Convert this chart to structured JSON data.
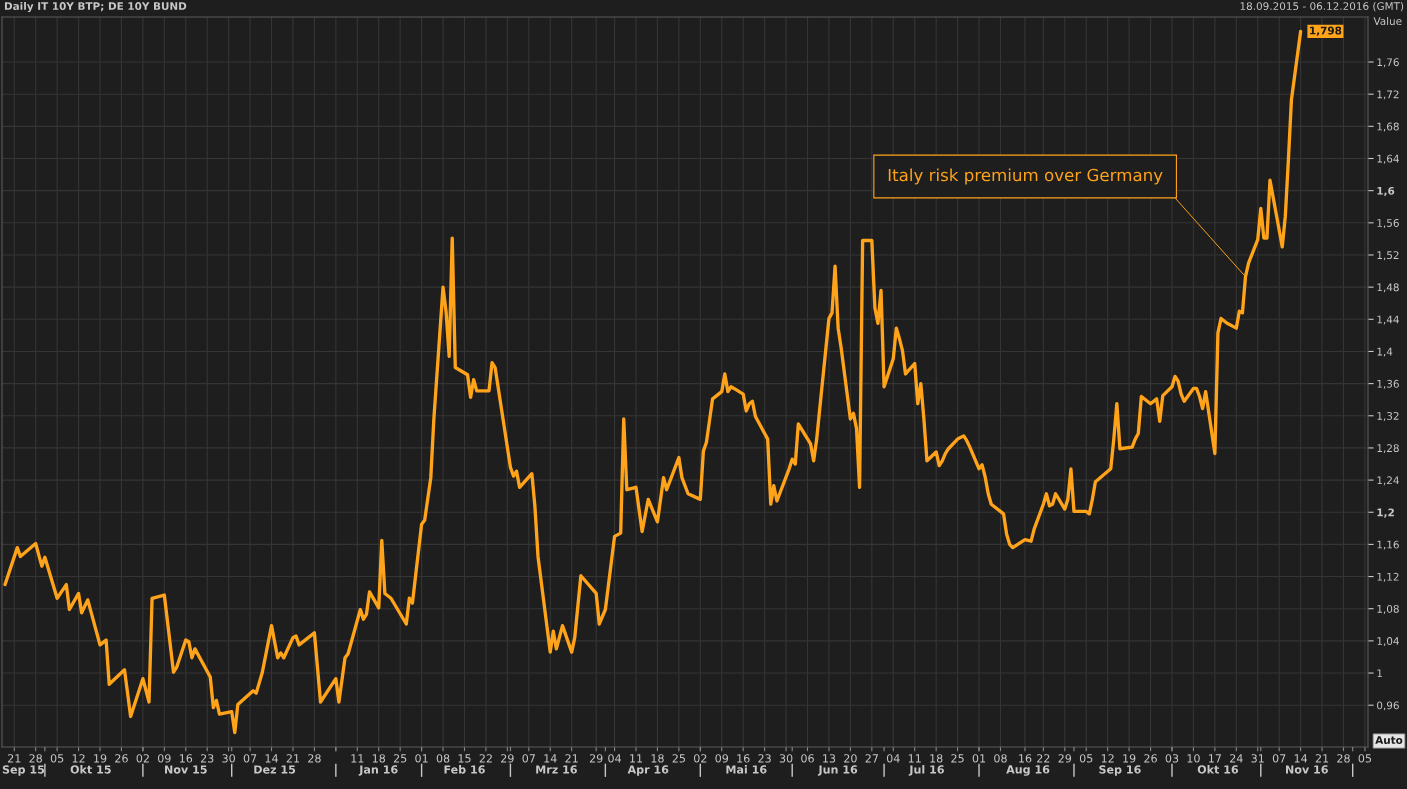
{
  "chart_data": {
    "type": "line",
    "title": "Daily IT 10Y BTP; DE 10Y BUND",
    "subtitle": "18.09.2015 - 06.12.2016 (GMT)",
    "ylabel": "Value",
    "annotations": [
      {
        "text": "Italy risk premium over Germany",
        "x": "2016-10-27",
        "y": 1.493
      },
      {
        "text": "1,798",
        "x": "2016-11-14",
        "y": 1.798
      },
      "Auto"
    ],
    "x": [
      "2015-09-18",
      "2015-09-22",
      "2015-09-23",
      "2015-09-28",
      "2015-09-30",
      "2015-10-01",
      "2015-10-05",
      "2015-10-08",
      "2015-10-09",
      "2015-10-12",
      "2015-10-13",
      "2015-10-15",
      "2015-10-19",
      "2015-10-21",
      "2015-10-22",
      "2015-10-27",
      "2015-10-29",
      "2015-11-02",
      "2015-11-04",
      "2015-11-05",
      "2015-11-09",
      "2015-11-12",
      "2015-11-13",
      "2015-11-16",
      "2015-11-17",
      "2015-11-18",
      "2015-11-19",
      "2015-11-24",
      "2015-11-25",
      "2015-11-26",
      "2015-11-27",
      "2015-12-01",
      "2015-12-02",
      "2015-12-03",
      "2015-12-08",
      "2015-12-09",
      "2015-12-11",
      "2015-12-14",
      "2015-12-16",
      "2015-12-17",
      "2015-12-18",
      "2015-12-21",
      "2015-12-22",
      "2015-12-23",
      "2015-12-28",
      "2015-12-30",
      "2016-01-04",
      "2016-01-05",
      "2016-01-07",
      "2016-01-08",
      "2016-01-12",
      "2016-01-13",
      "2016-01-14",
      "2016-01-15",
      "2016-01-18",
      "2016-01-19",
      "2016-01-20",
      "2016-01-22",
      "2016-01-27",
      "2016-01-28",
      "2016-01-29",
      "2016-02-01",
      "2016-02-02",
      "2016-02-04",
      "2016-02-05",
      "2016-02-08",
      "2016-02-09",
      "2016-02-10",
      "2016-02-11",
      "2016-02-12",
      "2016-02-16",
      "2016-02-17",
      "2016-02-18",
      "2016-02-19",
      "2016-02-23",
      "2016-02-24",
      "2016-02-25",
      "2016-03-01",
      "2016-03-02",
      "2016-03-03",
      "2016-03-04",
      "2016-03-08",
      "2016-03-09",
      "2016-03-10",
      "2016-03-14",
      "2016-03-15",
      "2016-03-16",
      "2016-03-18",
      "2016-03-21",
      "2016-03-22",
      "2016-03-24",
      "2016-03-29",
      "2016-03-30",
      "2016-04-01",
      "2016-04-04",
      "2016-04-06",
      "2016-04-07",
      "2016-04-08",
      "2016-04-11",
      "2016-04-13",
      "2016-04-15",
      "2016-04-18",
      "2016-04-20",
      "2016-04-21",
      "2016-04-25",
      "2016-04-26",
      "2016-04-28",
      "2016-05-02",
      "2016-05-03",
      "2016-05-04",
      "2016-05-06",
      "2016-05-09",
      "2016-05-10",
      "2016-05-11",
      "2016-05-12",
      "2016-05-13",
      "2016-05-16",
      "2016-05-17",
      "2016-05-18",
      "2016-05-19",
      "2016-05-20",
      "2016-05-24",
      "2016-05-25",
      "2016-05-26",
      "2016-05-27",
      "2016-05-31",
      "2016-06-01",
      "2016-06-02",
      "2016-06-03",
      "2016-06-07",
      "2016-06-08",
      "2016-06-09",
      "2016-06-10",
      "2016-06-13",
      "2016-06-14",
      "2016-06-15",
      "2016-06-16",
      "2016-06-17",
      "2016-06-20",
      "2016-06-21",
      "2016-06-22",
      "2016-06-23",
      "2016-06-24",
      "2016-06-27",
      "2016-06-28",
      "2016-06-29",
      "2016-06-30",
      "2016-07-01",
      "2016-07-04",
      "2016-07-05",
      "2016-07-06",
      "2016-07-07",
      "2016-07-08",
      "2016-07-11",
      "2016-07-12",
      "2016-07-13",
      "2016-07-14",
      "2016-07-15",
      "2016-07-18",
      "2016-07-19",
      "2016-07-20",
      "2016-07-21",
      "2016-07-22",
      "2016-07-25",
      "2016-07-27",
      "2016-07-28",
      "2016-07-29",
      "2016-08-01",
      "2016-08-02",
      "2016-08-03",
      "2016-08-04",
      "2016-08-05",
      "2016-08-09",
      "2016-08-10",
      "2016-08-11",
      "2016-08-12",
      "2016-08-16",
      "2016-08-18",
      "2016-08-19",
      "2016-08-22",
      "2016-08-23",
      "2016-08-24",
      "2016-08-25",
      "2016-08-26",
      "2016-08-29",
      "2016-08-30",
      "2016-08-31",
      "2016-09-01",
      "2016-09-05",
      "2016-09-06",
      "2016-09-07",
      "2016-09-08",
      "2016-09-09",
      "2016-09-13",
      "2016-09-14",
      "2016-09-15",
      "2016-09-16",
      "2016-09-20",
      "2016-09-21",
      "2016-09-22",
      "2016-09-23",
      "2016-09-26",
      "2016-09-28",
      "2016-09-29",
      "2016-09-30",
      "2016-10-03",
      "2016-10-04",
      "2016-10-05",
      "2016-10-06",
      "2016-10-07",
      "2016-10-10",
      "2016-10-11",
      "2016-10-12",
      "2016-10-13",
      "2016-10-14",
      "2016-10-17",
      "2016-10-18",
      "2016-10-19",
      "2016-10-21",
      "2016-10-24",
      "2016-10-25",
      "2016-10-26",
      "2016-10-27",
      "2016-10-28",
      "2016-10-31",
      "2016-11-01",
      "2016-11-02",
      "2016-11-03",
      "2016-11-04",
      "2016-11-07",
      "2016-11-08",
      "2016-11-09",
      "2016-11-10",
      "2016-11-11",
      "2016-11-14"
    ],
    "series": [
      {
        "color": "#ffa31a",
        "values": [
          1.11,
          1.156,
          1.145,
          1.161,
          1.133,
          1.144,
          1.093,
          1.11,
          1.079,
          1.099,
          1.075,
          1.091,
          1.035,
          1.041,
          0.986,
          1.004,
          0.946,
          0.993,
          0.964,
          1.093,
          1.097,
          1.001,
          1.007,
          1.041,
          1.039,
          1.019,
          1.03,
          0.995,
          0.957,
          0.966,
          0.949,
          0.952,
          0.926,
          0.961,
          0.978,
          0.975,
          1.001,
          1.059,
          1.019,
          1.025,
          1.019,
          1.044,
          1.046,
          1.035,
          1.05,
          0.964,
          0.993,
          0.964,
          1.019,
          1.024,
          1.079,
          1.067,
          1.073,
          1.101,
          1.081,
          1.165,
          1.099,
          1.093,
          1.061,
          1.093,
          1.087,
          1.185,
          1.19,
          1.243,
          1.316,
          1.48,
          1.449,
          1.394,
          1.541,
          1.38,
          1.371,
          1.343,
          1.365,
          1.351,
          1.351,
          1.386,
          1.38,
          1.256,
          1.245,
          1.251,
          1.231,
          1.248,
          1.207,
          1.145,
          1.026,
          1.052,
          1.03,
          1.059,
          1.026,
          1.044,
          1.121,
          1.099,
          1.061,
          1.079,
          1.17,
          1.174,
          1.316,
          1.228,
          1.231,
          1.176,
          1.216,
          1.188,
          1.243,
          1.228,
          1.268,
          1.243,
          1.223,
          1.216,
          1.276,
          1.287,
          1.341,
          1.35,
          1.372,
          1.35,
          1.356,
          1.354,
          1.347,
          1.326,
          1.335,
          1.338,
          1.319,
          1.291,
          1.21,
          1.233,
          1.214,
          1.254,
          1.266,
          1.26,
          1.31,
          1.285,
          1.264,
          1.291,
          1.329,
          1.441,
          1.448,
          1.506,
          1.429,
          1.404,
          1.316,
          1.323,
          1.304,
          1.231,
          1.538,
          1.538,
          1.454,
          1.435,
          1.476,
          1.356,
          1.391,
          1.429,
          1.416,
          1.401,
          1.372,
          1.385,
          1.335,
          1.36,
          1.316,
          1.264,
          1.275,
          1.258,
          1.264,
          1.273,
          1.279,
          1.291,
          1.295,
          1.289,
          1.281,
          1.254,
          1.259,
          1.244,
          1.223,
          1.21,
          1.198,
          1.173,
          1.16,
          1.156,
          1.166,
          1.164,
          1.179,
          1.21,
          1.223,
          1.208,
          1.21,
          1.223,
          1.204,
          1.216,
          1.254,
          1.201,
          1.201,
          1.198,
          1.216,
          1.238,
          1.241,
          1.254,
          1.291,
          1.335,
          1.279,
          1.281,
          1.291,
          1.298,
          1.344,
          1.335,
          1.341,
          1.313,
          1.345,
          1.356,
          1.369,
          1.363,
          1.347,
          1.338,
          1.354,
          1.354,
          1.344,
          1.329,
          1.35,
          1.273,
          1.423,
          1.441,
          1.435,
          1.429,
          1.45,
          1.448,
          1.493,
          1.51,
          1.539,
          1.578,
          1.541,
          1.541,
          1.613,
          1.551,
          1.53,
          1.568,
          1.638,
          1.713,
          1.798
        ]
      }
    ],
    "xlim": [
      "2015-09-17",
      "2016-12-06"
    ],
    "xticks": [
      {
        "value": "2015-09-21",
        "label": "21"
      },
      {
        "value": "2015-09-28",
        "label": "28"
      },
      {
        "value": "2015-10-05",
        "label": "05"
      },
      {
        "value": "2015-10-12",
        "label": "12"
      },
      {
        "value": "2015-10-19",
        "label": "19"
      },
      {
        "value": "2015-10-26",
        "label": "26"
      },
      {
        "value": "2015-11-02",
        "label": "02"
      },
      {
        "value": "2015-11-09",
        "label": "09"
      },
      {
        "value": "2015-11-16",
        "label": "16"
      },
      {
        "value": "2015-11-23",
        "label": "23"
      },
      {
        "value": "2015-11-30",
        "label": "30"
      },
      {
        "value": "2015-12-07",
        "label": "07"
      },
      {
        "value": "2015-12-14",
        "label": "14"
      },
      {
        "value": "2015-12-21",
        "label": "21"
      },
      {
        "value": "2015-12-28",
        "label": "28"
      },
      {
        "value": "2016-01-04",
        "label": null
      },
      {
        "value": "2016-01-11",
        "label": "11"
      },
      {
        "value": "2016-01-18",
        "label": "18"
      },
      {
        "value": "2016-01-25",
        "label": "25"
      },
      {
        "value": "2016-02-01",
        "label": "01"
      },
      {
        "value": "2016-02-08",
        "label": "08"
      },
      {
        "value": "2016-02-15",
        "label": "15"
      },
      {
        "value": "2016-02-22",
        "label": "22"
      },
      {
        "value": "2016-02-29",
        "label": "29"
      },
      {
        "value": "2016-03-07",
        "label": "07"
      },
      {
        "value": "2016-03-14",
        "label": "14"
      },
      {
        "value": "2016-03-21",
        "label": "21"
      },
      {
        "value": "2016-03-29",
        "label": "29"
      },
      {
        "value": "2016-04-04",
        "label": "04"
      },
      {
        "value": "2016-04-11",
        "label": "11"
      },
      {
        "value": "2016-04-18",
        "label": "18"
      },
      {
        "value": "2016-04-25",
        "label": "25"
      },
      {
        "value": "2016-05-02",
        "label": "02"
      },
      {
        "value": "2016-05-09",
        "label": "09"
      },
      {
        "value": "2016-05-16",
        "label": "16"
      },
      {
        "value": "2016-05-23",
        "label": "23"
      },
      {
        "value": "2016-05-30",
        "label": "30"
      },
      {
        "value": "2016-06-06",
        "label": "06"
      },
      {
        "value": "2016-06-13",
        "label": "13"
      },
      {
        "value": "2016-06-20",
        "label": "20"
      },
      {
        "value": "2016-06-27",
        "label": "27"
      },
      {
        "value": "2016-07-04",
        "label": "04"
      },
      {
        "value": "2016-07-11",
        "label": "11"
      },
      {
        "value": "2016-07-18",
        "label": "18"
      },
      {
        "value": "2016-07-25",
        "label": "25"
      },
      {
        "value": "2016-08-01",
        "label": "01"
      },
      {
        "value": "2016-08-08",
        "label": "08"
      },
      {
        "value": "2016-08-16",
        "label": "16"
      },
      {
        "value": "2016-08-22",
        "label": "22"
      },
      {
        "value": "2016-08-29",
        "label": "29"
      },
      {
        "value": "2016-09-05",
        "label": "05"
      },
      {
        "value": "2016-09-12",
        "label": "12"
      },
      {
        "value": "2016-09-19",
        "label": "19"
      },
      {
        "value": "2016-09-26",
        "label": "26"
      },
      {
        "value": "2016-10-03",
        "label": "03"
      },
      {
        "value": "2016-10-10",
        "label": "10"
      },
      {
        "value": "2016-10-17",
        "label": "17"
      },
      {
        "value": "2016-10-24",
        "label": "24"
      },
      {
        "value": "2016-10-31",
        "label": "31"
      },
      {
        "value": "2016-11-07",
        "label": "07"
      },
      {
        "value": "2016-11-14",
        "label": "14"
      },
      {
        "value": "2016-11-21",
        "label": "21"
      },
      {
        "value": "2016-11-28",
        "label": "28"
      },
      {
        "value": "2016-12-05",
        "label": "05"
      }
    ],
    "x2lim": [
      "2015-09-17",
      "2016-12-06"
    ],
    "x2ticks": [
      {
        "value": "2015-09-24",
        "label": "Sep 15"
      },
      {
        "value": "2015-10-01",
        "label": null
      },
      {
        "value": "2015-10-16",
        "label": "Okt 15"
      },
      {
        "value": "2015-11-02",
        "label": null
      },
      {
        "value": "2015-11-16",
        "label": "Nov 15"
      },
      {
        "value": "2015-12-01",
        "label": null
      },
      {
        "value": "2015-12-15",
        "label": "Dez 15"
      },
      {
        "value": "2016-01-04",
        "label": null
      },
      {
        "value": "2016-01-18",
        "label": "Jan 16"
      },
      {
        "value": "2016-02-01",
        "label": null
      },
      {
        "value": "2016-02-15",
        "label": "Feb 16"
      },
      {
        "value": "2016-03-01",
        "label": null
      },
      {
        "value": "2016-03-16",
        "label": "Mrz 16"
      },
      {
        "value": "2016-04-01",
        "label": null
      },
      {
        "value": "2016-04-15",
        "label": "Apr 16"
      },
      {
        "value": "2016-05-02",
        "label": null
      },
      {
        "value": "2016-05-17",
        "label": "Mai 16"
      },
      {
        "value": "2016-06-01",
        "label": null
      },
      {
        "value": "2016-06-16",
        "label": "Jun 16"
      },
      {
        "value": "2016-07-01",
        "label": null
      },
      {
        "value": "2016-07-15",
        "label": "Jul 16"
      },
      {
        "value": "2016-08-01",
        "label": null
      },
      {
        "value": "2016-08-17",
        "label": "Aug 16"
      },
      {
        "value": "2016-09-01",
        "label": null
      },
      {
        "value": "2016-09-16",
        "label": "Sep 16"
      },
      {
        "value": "2016-10-03",
        "label": null
      },
      {
        "value": "2016-10-18",
        "label": "Okt 16"
      },
      {
        "value": "2016-11-01",
        "label": null
      },
      {
        "value": "2016-11-16",
        "label": "Nov 16"
      },
      {
        "value": "2016-12-01",
        "label": null
      }
    ],
    "ylim": [
      0.908,
      1.816
    ],
    "yticks": [
      {
        "value": 0.96,
        "label": "0,96"
      },
      1,
      {
        "value": 1.04,
        "label": "1,04"
      },
      {
        "value": 1.08,
        "label": "1,08"
      },
      {
        "value": 1.12,
        "label": "1,12"
      },
      {
        "value": 1.16,
        "label": "1,16"
      },
      {
        "value": 1.2,
        "label": "1,2"
      },
      {
        "value": 1.24,
        "label": "1,24"
      },
      {
        "value": 1.28,
        "label": "1,28"
      },
      {
        "value": 1.32,
        "label": "1,32"
      },
      {
        "value": 1.36,
        "label": "1,36"
      },
      {
        "value": 1.4,
        "label": "1,4"
      },
      {
        "value": 1.44,
        "label": "1,44"
      },
      {
        "value": 1.48,
        "label": "1,48"
      },
      {
        "value": 1.52,
        "label": "1,52"
      },
      {
        "value": 1.56,
        "label": "1,56"
      },
      {
        "value": 1.6,
        "label": "1,6"
      },
      {
        "value": 1.64,
        "label": "1,64"
      },
      {
        "value": 1.68,
        "label": "1,68"
      },
      {
        "value": 1.72,
        "label": "1,72"
      },
      {
        "value": 1.76,
        "label": "1,76"
      }
    ],
    "grid": true,
    "line_style": "solid"
  }
}
